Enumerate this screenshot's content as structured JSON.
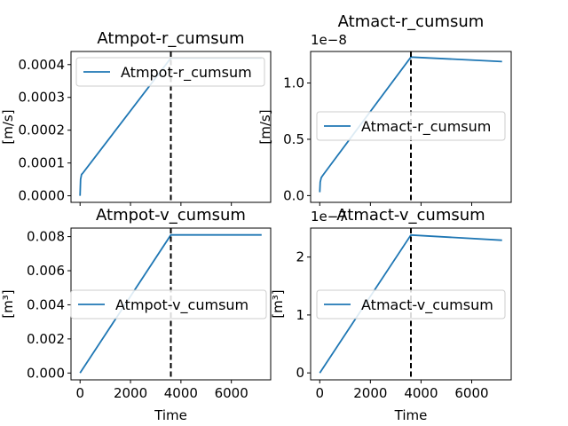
{
  "chart_data": [
    {
      "type": "line",
      "title": "Atmpot-r_cumsum",
      "xlabel": "",
      "ylabel": "[m/s]",
      "ylim": [
        -2e-05,
        0.00044
      ],
      "xlim": [
        -360,
        7560
      ],
      "yticks": [
        0.0,
        0.0001,
        0.0002,
        0.0003,
        0.0004
      ],
      "ytick_labels": [
        "0.0000",
        "0.0001",
        "0.0002",
        "0.0003",
        "0.0004"
      ],
      "xticks": [
        0,
        2000,
        4000,
        6000
      ],
      "xtick_labels": [],
      "offset_text": "",
      "series": [
        {
          "name": "Atmpot-r_cumsum",
          "x": [
            0,
            20,
            60,
            120,
            3600,
            3700,
            7200
          ],
          "y": [
            0.0,
            5e-05,
            6.5e-05,
            7e-05,
            0.00042,
            0.00042,
            0.00042
          ]
        }
      ],
      "vline_x": 3600,
      "legend": "upper left"
    },
    {
      "type": "line",
      "title": "Atmact-r_cumsum",
      "xlabel": "",
      "ylabel": "[m/s]",
      "ylim": [
        -0.06,
        1.28
      ],
      "xlim": [
        -360,
        7560
      ],
      "yticks": [
        0.0,
        0.5,
        1.0
      ],
      "ytick_labels": [
        "0.0",
        "0.5",
        "1.0"
      ],
      "xticks": [
        0,
        2000,
        4000,
        6000
      ],
      "xtick_labels": [],
      "offset_text": "1e−8",
      "series": [
        {
          "name": "Atmact-r_cumsum",
          "x": [
            0,
            20,
            60,
            120,
            3600,
            7200
          ],
          "y": [
            0.03,
            0.12,
            0.16,
            0.18,
            1.23,
            1.19
          ]
        }
      ],
      "vline_x": 3600,
      "legend": "center left"
    },
    {
      "type": "line",
      "title": "Atmpot-v_cumsum",
      "xlabel": "Time",
      "ylabel": "[m³]",
      "ylim": [
        -0.0004,
        0.0085
      ],
      "xlim": [
        -360,
        7560
      ],
      "yticks": [
        0.0,
        0.002,
        0.004,
        0.006,
        0.008
      ],
      "ytick_labels": [
        "0.000",
        "0.002",
        "0.004",
        "0.006",
        "0.008"
      ],
      "xticks": [
        0,
        2000,
        4000,
        6000
      ],
      "xtick_labels": [
        "0",
        "2000",
        "4000",
        "6000"
      ],
      "offset_text": "",
      "series": [
        {
          "name": "Atmpot-v_cumsum",
          "x": [
            0,
            3600,
            3700,
            7200
          ],
          "y": [
            0.0,
            0.0081,
            0.0081,
            0.0081
          ]
        }
      ],
      "vline_x": 3600,
      "legend": "center left"
    },
    {
      "type": "line",
      "title": "Atmact-v_cumsum",
      "xlabel": "Time",
      "ylabel": "[m³]",
      "ylim": [
        -0.12,
        2.5
      ],
      "xlim": [
        -360,
        7560
      ],
      "yticks": [
        0,
        1,
        2
      ],
      "ytick_labels": [
        "0",
        "1",
        "2"
      ],
      "xticks": [
        0,
        2000,
        4000,
        6000
      ],
      "xtick_labels": [
        "0",
        "2000",
        "4000",
        "6000"
      ],
      "offset_text": "1e−7",
      "series": [
        {
          "name": "Atmact-v_cumsum",
          "x": [
            0,
            3600,
            7200
          ],
          "y": [
            0.0,
            2.38,
            2.29
          ]
        }
      ],
      "vline_x": 3600,
      "legend": "center left"
    }
  ]
}
